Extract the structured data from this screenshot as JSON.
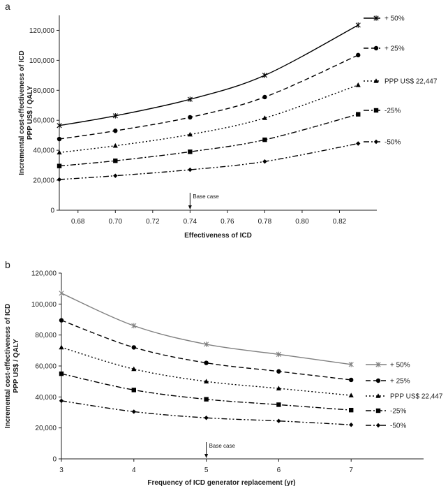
{
  "chart_data": [
    {
      "type": "line",
      "panel_label": "a",
      "xlabel": "Effectiveness of ICD",
      "ylabel": [
        "Incremental cost-effectiveness of ICD",
        "PPP US$ / QALY"
      ],
      "xlim": [
        0.67,
        0.84
      ],
      "ylim": [
        0,
        130000
      ],
      "xticks": [
        0.68,
        0.7,
        0.72,
        0.74,
        0.76,
        0.78,
        0.8,
        0.82
      ],
      "xtick_labels": [
        "0.68",
        "0.70",
        "0.72",
        "0.74",
        "0.76",
        "0.78",
        "0.80",
        "0.82"
      ],
      "yticks": [
        0,
        20000,
        40000,
        60000,
        80000,
        100000,
        120000
      ],
      "ytick_labels": [
        "0",
        "20,000",
        "40,000",
        "60,000",
        "80,000",
        "100,000",
        "120,000"
      ],
      "x": [
        0.67,
        0.7,
        0.74,
        0.78,
        0.83
      ],
      "series": [
        {
          "name": "+ 50%",
          "values": [
            56500,
            63000,
            74000,
            90000,
            123500
          ],
          "color": "#000000",
          "dash": "solid",
          "marker": "asterisk"
        },
        {
          "name": "+ 25%",
          "values": [
            47500,
            53000,
            62000,
            75500,
            103500
          ],
          "color": "#000000",
          "dash": "dashed",
          "marker": "circle"
        },
        {
          "name": "PPP US$ 22,447",
          "values": [
            38500,
            43000,
            50500,
            61500,
            83500
          ],
          "color": "#000000",
          "dash": "dotted",
          "marker": "triangle"
        },
        {
          "name": "-25%",
          "values": [
            29500,
            33000,
            39000,
            47000,
            64000
          ],
          "color": "#000000",
          "dash": "dashdot",
          "marker": "square"
        },
        {
          "name": "-50%",
          "values": [
            20500,
            23000,
            27000,
            32500,
            44500
          ],
          "color": "#000000",
          "dash": "dashdotdot",
          "marker": "diamond"
        }
      ],
      "annotation": {
        "text": "Base case",
        "x": 0.74
      },
      "grid": false,
      "legend_placement": "right, at line ends"
    },
    {
      "type": "line",
      "panel_label": "b",
      "xlabel": "Frequency of ICD generator  replacement (yr)",
      "ylabel": [
        "Incremental cost-effectiveness of ICD",
        "PPP US$ / QALY"
      ],
      "xlim": [
        3,
        8
      ],
      "ylim": [
        0,
        120000
      ],
      "xticks": [
        3,
        4,
        5,
        6,
        7
      ],
      "xtick_labels": [
        "3",
        "4",
        "5",
        "6",
        "7"
      ],
      "yticks": [
        0,
        20000,
        40000,
        60000,
        80000,
        100000,
        120000
      ],
      "ytick_labels": [
        "0",
        "20,000",
        "40,000",
        "60,000",
        "80,000",
        "100,000",
        "120,000"
      ],
      "x": [
        3,
        4,
        5,
        6,
        7
      ],
      "series": [
        {
          "name": "+ 50%",
          "values": [
            107000,
            86000,
            74000,
            67500,
            61000
          ],
          "color": "#808080",
          "dash": "solid",
          "marker": "asterisk"
        },
        {
          "name": "+ 25%",
          "values": [
            89500,
            72000,
            62000,
            56500,
            51000
          ],
          "color": "#000000",
          "dash": "dashed",
          "marker": "circle"
        },
        {
          "name": "PPP US$ 22,447",
          "values": [
            72000,
            58000,
            50000,
            45500,
            41000
          ],
          "color": "#000000",
          "dash": "dotted",
          "marker": "triangle"
        },
        {
          "name": "-25%",
          "values": [
            55000,
            44500,
            38500,
            35000,
            31500
          ],
          "color": "#000000",
          "dash": "dashdot",
          "marker": "square"
        },
        {
          "name": "-50%",
          "values": [
            37500,
            30500,
            26500,
            24500,
            22000
          ],
          "color": "#000000",
          "dash": "dashdotdot",
          "marker": "diamond"
        }
      ],
      "annotation": {
        "text": "Base case",
        "x": 5
      },
      "grid": false,
      "legend_placement": "right, at line ends"
    }
  ]
}
